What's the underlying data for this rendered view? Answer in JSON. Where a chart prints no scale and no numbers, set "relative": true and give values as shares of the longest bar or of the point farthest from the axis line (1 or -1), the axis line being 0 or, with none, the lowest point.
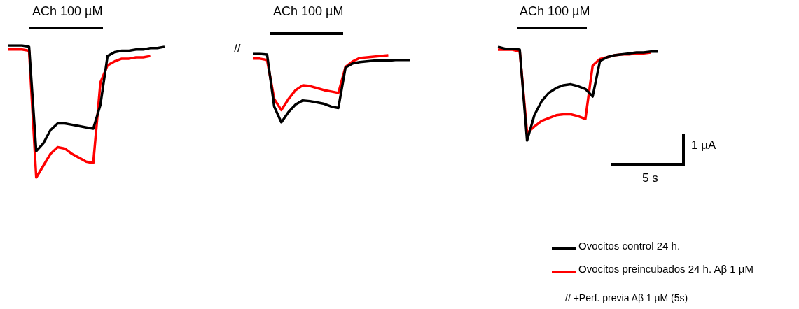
{
  "chart_data": [
    {
      "type": "line",
      "relative": true,
      "categories": [
        null,
        null,
        null,
        null,
        null,
        null,
        null,
        null,
        null,
        null,
        null,
        null,
        null,
        null,
        null,
        null,
        null,
        null,
        null,
        null,
        null,
        null,
        null
      ],
      "annotations": [
        "ACh 100 µM"
      ],
      "series": [
        {
          "color": "#000000",
          "values": [
            1.0,
            1.0,
            1.0,
            0.99,
            0.2,
            0.26,
            0.36,
            0.41,
            0.41,
            0.4,
            0.39,
            0.38,
            0.37,
            0.55,
            0.92,
            0.95,
            0.96,
            0.96,
            0.97,
            0.97,
            0.98,
            0.98,
            0.99
          ]
        },
        {
          "color": "#ff0000",
          "values": [
            0.97,
            0.97,
            0.97,
            0.96,
            0.0,
            0.09,
            0.18,
            0.23,
            0.22,
            0.18,
            0.15,
            0.12,
            0.11,
            0.72,
            0.85,
            0.88,
            0.9,
            0.9,
            0.91,
            0.91,
            0.92,
            null,
            null
          ]
        }
      ]
    },
    {
      "type": "line",
      "relative": true,
      "categories": [
        null,
        null,
        null,
        null,
        null,
        null,
        null,
        null,
        null,
        null,
        null,
        null,
        null,
        null,
        null,
        null,
        null,
        null,
        null,
        null,
        null,
        null,
        null
      ],
      "annotations": [
        "ACh 100 µM",
        "//"
      ],
      "series": [
        {
          "color": "#000000",
          "values": [
            1.0,
            1.0,
            0.99,
            0.23,
            0.0,
            0.15,
            0.26,
            0.32,
            0.31,
            0.29,
            0.27,
            0.23,
            0.21,
            0.8,
            0.86,
            0.88,
            0.89,
            0.9,
            0.9,
            0.9,
            0.91,
            0.91,
            0.91
          ]
        },
        {
          "color": "#ff0000",
          "values": [
            0.93,
            0.93,
            0.91,
            0.34,
            0.18,
            0.34,
            0.47,
            0.54,
            0.53,
            0.5,
            0.47,
            0.45,
            0.43,
            0.81,
            0.89,
            0.94,
            0.95,
            0.96,
            0.97,
            0.98,
            null,
            null,
            null
          ]
        }
      ]
    },
    {
      "type": "line",
      "relative": true,
      "categories": [
        null,
        null,
        null,
        null,
        null,
        null,
        null,
        null,
        null,
        null,
        null,
        null,
        null,
        null,
        null,
        null,
        null,
        null,
        null,
        null,
        null,
        null,
        null
      ],
      "annotations": [
        "ACh 100 µM",
        "1 µA",
        "5 s",
        "// +Perf. previa Aβ 1 µM (5s)"
      ],
      "legend": "bottom right",
      "series": [
        {
          "name": "Ovocitos control 24 h.",
          "color": "#000000",
          "values": [
            1.0,
            0.98,
            0.98,
            0.97,
            0.0,
            0.27,
            0.42,
            0.51,
            0.56,
            0.59,
            0.6,
            0.58,
            0.55,
            0.47,
            0.85,
            0.89,
            0.91,
            0.92,
            0.93,
            0.94,
            0.94,
            0.95,
            0.95
          ]
        },
        {
          "name": "Ovocitos preincubados 24 h. Aβ 1 µM",
          "color": "#ff0000",
          "values": [
            0.97,
            0.97,
            0.97,
            0.95,
            0.08,
            0.15,
            0.21,
            0.24,
            0.27,
            0.28,
            0.28,
            0.26,
            0.23,
            0.8,
            0.87,
            0.89,
            0.91,
            0.92,
            0.92,
            0.93,
            0.93,
            0.94,
            null
          ]
        }
      ]
    }
  ]
}
